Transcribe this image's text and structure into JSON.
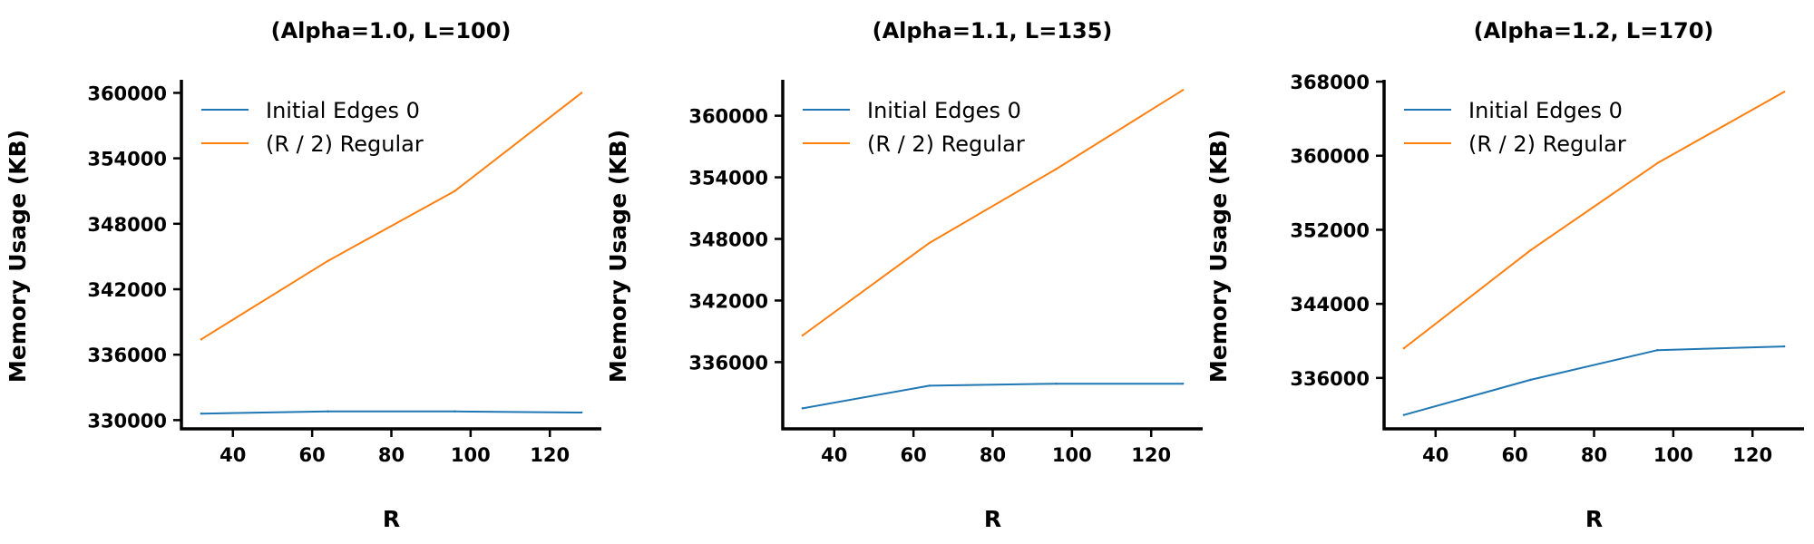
{
  "chart_data": [
    {
      "type": "line",
      "title": "(Alpha=1.0, L=100)",
      "xlabel": "R",
      "ylabel": "Memory Usage (KB)",
      "xlim": [
        27,
        133
      ],
      "ylim": [
        329200,
        361200
      ],
      "xticks": [
        40,
        60,
        80,
        100,
        120
      ],
      "yticks": [
        330000,
        336000,
        342000,
        348000,
        354000,
        360000
      ],
      "legend": "upper-left",
      "x": [
        32,
        64,
        96,
        128
      ],
      "series": [
        {
          "name": "Initial Edges 0",
          "color": "#1f77b4",
          "values": [
            330600,
            330800,
            330800,
            330700
          ]
        },
        {
          "name": "(R / 2) Regular",
          "color": "#ff7f0e",
          "values": [
            337400,
            344600,
            351000,
            360000
          ]
        }
      ]
    },
    {
      "type": "line",
      "title": "(Alpha=1.1, L=135)",
      "xlabel": "R",
      "ylabel": "Memory Usage (KB)",
      "xlim": [
        27,
        133
      ],
      "ylim": [
        329500,
        363500
      ],
      "xticks": [
        40,
        60,
        80,
        100,
        120
      ],
      "yticks": [
        336000,
        342000,
        348000,
        354000,
        360000
      ],
      "legend": "upper-left",
      "x": [
        32,
        64,
        96,
        128
      ],
      "series": [
        {
          "name": "Initial Edges 0",
          "color": "#1f77b4",
          "values": [
            331500,
            333700,
            333900,
            333900
          ]
        },
        {
          "name": "(R / 2) Regular",
          "color": "#ff7f0e",
          "values": [
            338600,
            347600,
            354800,
            362500
          ]
        }
      ]
    },
    {
      "type": "line",
      "title": "(Alpha=1.2, L=170)",
      "xlabel": "R",
      "ylabel": "Memory Usage (KB)",
      "xlim": [
        27,
        133
      ],
      "ylim": [
        330500,
        368200
      ],
      "xticks": [
        40,
        60,
        80,
        100,
        120
      ],
      "yticks": [
        336000,
        344000,
        352000,
        360000,
        368000
      ],
      "legend": "upper-left",
      "x": [
        32,
        64,
        96,
        128
      ],
      "series": [
        {
          "name": "Initial Edges 0",
          "color": "#1f77b4",
          "values": [
            332000,
            335800,
            339000,
            339400
          ]
        },
        {
          "name": "(R / 2) Regular",
          "color": "#ff7f0e",
          "values": [
            339200,
            349800,
            359200,
            366900
          ]
        }
      ]
    }
  ]
}
